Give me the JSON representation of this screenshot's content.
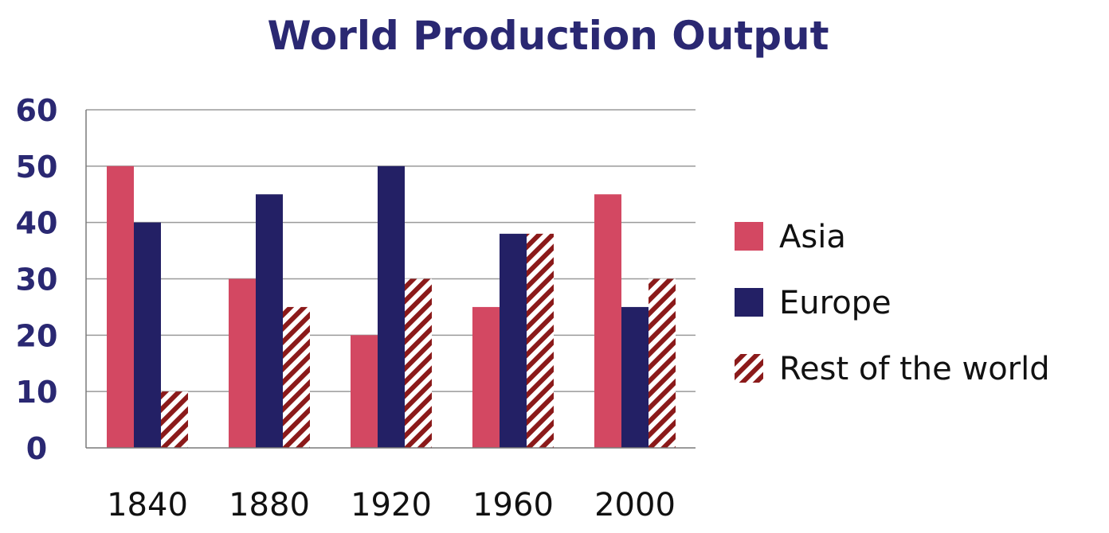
{
  "chart_data": {
    "type": "bar",
    "title": "World Production Output",
    "xlabel": "",
    "ylabel": "",
    "categories": [
      "1840",
      "1880",
      "1920",
      "1960",
      "2000"
    ],
    "series": [
      {
        "name": "Asia",
        "values": [
          50,
          30,
          20,
          25,
          45
        ],
        "color": "#D34862",
        "pattern": "solid"
      },
      {
        "name": "Europe",
        "values": [
          40,
          45,
          50,
          38,
          25
        ],
        "color": "#232065",
        "pattern": "solid"
      },
      {
        "name": "Rest of the world",
        "values": [
          10,
          25,
          30,
          38,
          30
        ],
        "color": "#8B1A1A",
        "pattern": "diagonal-hatch"
      }
    ],
    "ylim": [
      0,
      60
    ],
    "yticks": [
      "0",
      "10",
      "20",
      "30",
      "40",
      "50",
      "60"
    ],
    "grid": true,
    "legend_position": "right"
  },
  "colors": {
    "title": "#2A2872",
    "ytick": "#2A2872",
    "grid": "#9a9a9a",
    "axis": "#7a7a7a"
  }
}
